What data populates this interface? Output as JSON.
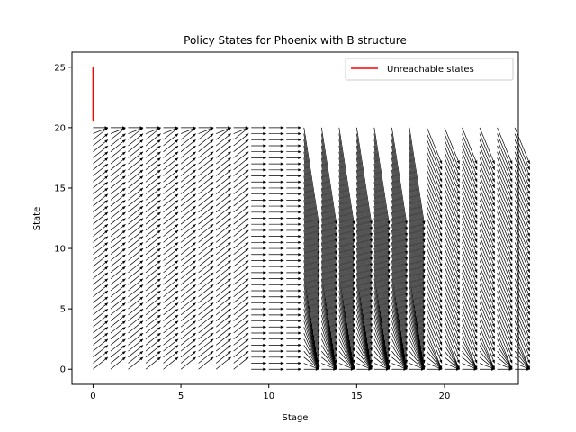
{
  "chart_data": {
    "type": "quiver",
    "title": "Policy States for Phoenix with B structure",
    "xlabel": "Stage",
    "ylabel": "State",
    "xlim": [
      -1.2,
      24.2
    ],
    "ylim": [
      -1.25,
      26.25
    ],
    "xticks": [
      0,
      5,
      10,
      15,
      20
    ],
    "yticks": [
      0,
      5,
      10,
      15,
      20,
      25
    ],
    "grid": false,
    "legend": {
      "placement": "top-right",
      "entries": [
        {
          "name": "Unreachable states",
          "color": "#ff0000"
        }
      ]
    },
    "stages": [
      0,
      24
    ],
    "states": [
      0,
      20
    ],
    "unreachable_states": {
      "stage": 0,
      "from": 20.5,
      "to": 25
    },
    "arrow_color": "#000000",
    "policy_summary": "Arrows point from state s at stage t toward the next state chosen at stage t+1; columns 12–18 funnel states down toward low values."
  }
}
